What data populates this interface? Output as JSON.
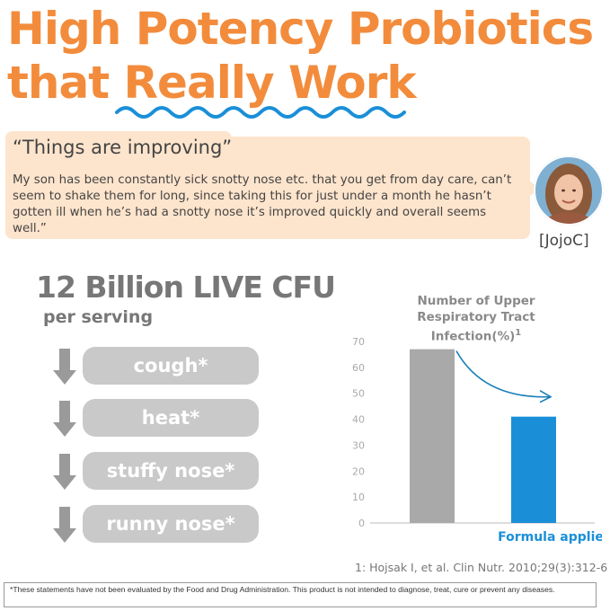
{
  "title": {
    "line1": "High Potency Probiotics",
    "line2": "that Really Work"
  },
  "testimonial": {
    "headline": "“Things are improving”",
    "body": "My son has been constantly sick snotty nose etc. that you get from day care, can’t seem to shake them for long, since taking this for just under a month he hasn’t gotten ill when he’s had a snotty nose it’s improved quickly and overall seems well.”",
    "reviewer": "[JojoC]"
  },
  "potency": {
    "headline": "12 Billion LIVE CFU",
    "sub": "per serving"
  },
  "symptoms": [
    "cough*",
    "heat*",
    "stuffy nose*",
    "runny nose*"
  ],
  "chart_data": {
    "type": "bar",
    "title_line1": "Number of Upper",
    "title_line2": "Respiratory Tract Infection(%)",
    "title_sup": "1",
    "categories": [
      "",
      "Formula applied"
    ],
    "values": [
      67,
      41
    ],
    "colors": [
      "#a9a9a9",
      "#1a8fd8"
    ],
    "ylim": [
      0,
      70
    ],
    "yticks": [
      0,
      10,
      20,
      30,
      40,
      50,
      60,
      70
    ],
    "annotation": "decrease arrow"
  },
  "citation": "1: Hojsak I, et al. Clin Nutr. 2010;29(3):312-6",
  "disclaimer": "*These statements have not been evaluated by the Food and Drug Administration. This product is not intended to diagnose, treat, cure or prevent any diseases."
}
